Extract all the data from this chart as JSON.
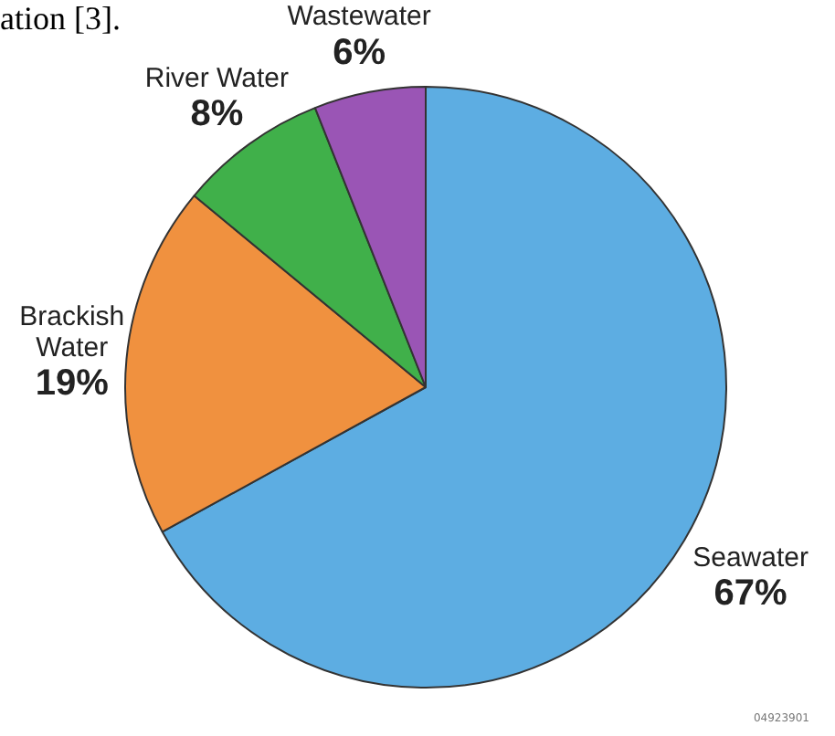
{
  "chart_data": {
    "type": "pie",
    "categories": [
      "Seawater",
      "Brackish Water",
      "River Water",
      "Wastewater"
    ],
    "values": [
      67,
      19,
      8,
      6
    ],
    "colors": [
      "#5dade2",
      "#f0913f",
      "#40b04a",
      "#9a55b5"
    ],
    "value_labels": [
      "67%",
      "19%",
      "8%",
      "6%"
    ],
    "legend": false,
    "annotations": [
      "ation [3].",
      "04923901"
    ]
  }
}
